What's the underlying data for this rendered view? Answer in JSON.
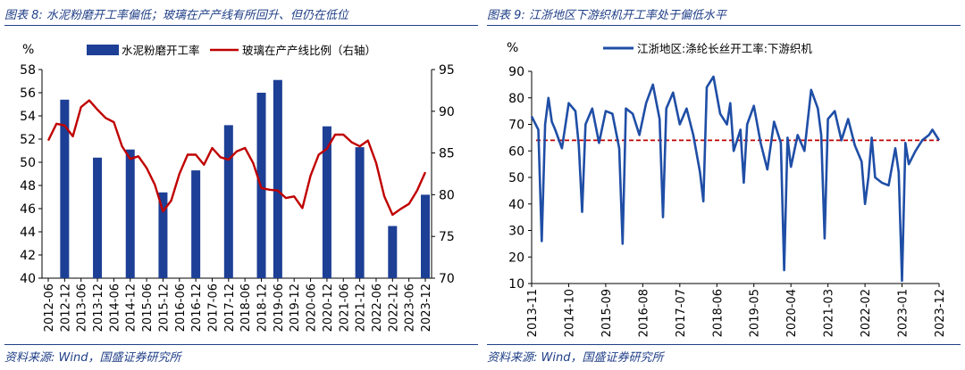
{
  "left": {
    "title": "图表 8:  水泥粉磨开工率偏低；玻璃在产产线有所回升、但仍在低位",
    "source": "资料来源:  Wind，国盛证券研究所"
  },
  "right": {
    "title": "图表 9:  江浙地区下游织机开工率处于偏低水平",
    "source": "资料来源:  Wind，国盛证券研究所"
  },
  "colors": {
    "navy": "#1f3e86",
    "bar": "#1d3f95",
    "red_line": "#c00000",
    "blue_line": "#1f4ea6",
    "dashed": "#c00000"
  },
  "chart_data": [
    {
      "type": "bar",
      "unit_left": "%",
      "ylim_left": [
        40,
        58
      ],
      "yticks_left": [
        40,
        42,
        44,
        46,
        48,
        50,
        52,
        54,
        56,
        58
      ],
      "ylim_right": [
        70,
        95
      ],
      "yticks_right": [
        70,
        75,
        80,
        85,
        90,
        95
      ],
      "categories": [
        "2012-06",
        "2012-12",
        "2013-06",
        "2013-12",
        "2014-06",
        "2014-12",
        "2015-06",
        "2015-12",
        "2016-06",
        "2016-12",
        "2017-06",
        "2017-12",
        "2018-06",
        "2018-12",
        "2019-06",
        "2019-12",
        "2020-06",
        "2020-12",
        "2021-06",
        "2021-12",
        "2022-06",
        "2022-12",
        "2023-06",
        "2023-12"
      ],
      "x_start": "2012-06",
      "x_end": "2023-12",
      "series": [
        {
          "name": "水泥粉磨开工率",
          "axis": "left",
          "type": "bar",
          "color": "#1d3f95",
          "points": [
            {
              "x": "2012-12",
              "y": 55.4
            },
            {
              "x": "2013-12",
              "y": 50.4
            },
            {
              "x": "2014-12",
              "y": 51.1
            },
            {
              "x": "2015-12",
              "y": 47.4
            },
            {
              "x": "2016-12",
              "y": 49.3
            },
            {
              "x": "2017-12",
              "y": 53.2
            },
            {
              "x": "2018-12",
              "y": 56.0
            },
            {
              "x": "2019-06",
              "y": 57.1
            },
            {
              "x": "2020-12",
              "y": 53.1
            },
            {
              "x": "2021-12",
              "y": 51.3
            },
            {
              "x": "2022-12",
              "y": 44.5
            },
            {
              "x": "2023-12",
              "y": 47.2
            }
          ]
        },
        {
          "name": "玻璃在产产线比例（右轴）",
          "axis": "right",
          "type": "line",
          "color": "#c00000",
          "points": [
            {
              "x": "2012-06",
              "y": 86.5
            },
            {
              "x": "2012-09",
              "y": 88.5
            },
            {
              "x": "2012-12",
              "y": 88.3
            },
            {
              "x": "2013-03",
              "y": 87.0
            },
            {
              "x": "2013-06",
              "y": 90.5
            },
            {
              "x": "2013-09",
              "y": 91.3
            },
            {
              "x": "2013-12",
              "y": 90.2
            },
            {
              "x": "2014-03",
              "y": 89.2
            },
            {
              "x": "2014-06",
              "y": 88.7
            },
            {
              "x": "2014-09",
              "y": 85.8
            },
            {
              "x": "2014-12",
              "y": 84.3
            },
            {
              "x": "2015-03",
              "y": 84.6
            },
            {
              "x": "2015-06",
              "y": 83.2
            },
            {
              "x": "2015-09",
              "y": 81.2
            },
            {
              "x": "2015-12",
              "y": 78.0
            },
            {
              "x": "2016-03",
              "y": 79.3
            },
            {
              "x": "2016-06",
              "y": 82.5
            },
            {
              "x": "2016-09",
              "y": 84.8
            },
            {
              "x": "2016-12",
              "y": 84.8
            },
            {
              "x": "2017-03",
              "y": 83.6
            },
            {
              "x": "2017-06",
              "y": 85.6
            },
            {
              "x": "2017-09",
              "y": 84.5
            },
            {
              "x": "2017-12",
              "y": 84.2
            },
            {
              "x": "2018-03",
              "y": 85.2
            },
            {
              "x": "2018-06",
              "y": 85.6
            },
            {
              "x": "2018-09",
              "y": 83.8
            },
            {
              "x": "2018-12",
              "y": 80.8
            },
            {
              "x": "2019-03",
              "y": 80.6
            },
            {
              "x": "2019-06",
              "y": 80.5
            },
            {
              "x": "2019-09",
              "y": 79.6
            },
            {
              "x": "2019-12",
              "y": 79.8
            },
            {
              "x": "2020-03",
              "y": 78.4
            },
            {
              "x": "2020-06",
              "y": 82.3
            },
            {
              "x": "2020-09",
              "y": 84.8
            },
            {
              "x": "2020-12",
              "y": 85.5
            },
            {
              "x": "2021-03",
              "y": 87.2
            },
            {
              "x": "2021-06",
              "y": 87.2
            },
            {
              "x": "2021-09",
              "y": 86.3
            },
            {
              "x": "2021-12",
              "y": 85.8
            },
            {
              "x": "2022-03",
              "y": 86.5
            },
            {
              "x": "2022-06",
              "y": 83.8
            },
            {
              "x": "2022-09",
              "y": 79.8
            },
            {
              "x": "2022-12",
              "y": 77.6
            },
            {
              "x": "2023-03",
              "y": 78.3
            },
            {
              "x": "2023-06",
              "y": 78.9
            },
            {
              "x": "2023-09",
              "y": 80.5
            },
            {
              "x": "2023-12",
              "y": 82.7
            }
          ]
        }
      ]
    },
    {
      "type": "line",
      "unit": "%",
      "ylim": [
        10,
        90
      ],
      "yticks": [
        10,
        20,
        30,
        40,
        50,
        60,
        70,
        80,
        90
      ],
      "categories": [
        "2013-11",
        "2014-10",
        "2015-09",
        "2016-08",
        "2017-07",
        "2018-06",
        "2019-05",
        "2020-04",
        "2021-03",
        "2022-02",
        "2023-01",
        "2023-12"
      ],
      "x_start": "2013-11",
      "x_end": "2023-12",
      "reference_line": 64,
      "series": [
        {
          "name": "江浙地区:涤纶长丝开工率:下游织机",
          "color": "#1f4ea6",
          "points": [
            {
              "x": "2013-11",
              "y": 73
            },
            {
              "x": "2014-01",
              "y": 68
            },
            {
              "x": "2014-02",
              "y": 26
            },
            {
              "x": "2014-03",
              "y": 70
            },
            {
              "x": "2014-04",
              "y": 80
            },
            {
              "x": "2014-05",
              "y": 71
            },
            {
              "x": "2014-06",
              "y": 68
            },
            {
              "x": "2014-08",
              "y": 61
            },
            {
              "x": "2014-10",
              "y": 78
            },
            {
              "x": "2014-12",
              "y": 75
            },
            {
              "x": "2015-01",
              "y": 62
            },
            {
              "x": "2015-02",
              "y": 37
            },
            {
              "x": "2015-03",
              "y": 70
            },
            {
              "x": "2015-05",
              "y": 76
            },
            {
              "x": "2015-07",
              "y": 63
            },
            {
              "x": "2015-09",
              "y": 75
            },
            {
              "x": "2015-11",
              "y": 74
            },
            {
              "x": "2016-01",
              "y": 61
            },
            {
              "x": "2016-02",
              "y": 25
            },
            {
              "x": "2016-03",
              "y": 76
            },
            {
              "x": "2016-05",
              "y": 74
            },
            {
              "x": "2016-07",
              "y": 66
            },
            {
              "x": "2016-09",
              "y": 78
            },
            {
              "x": "2016-11",
              "y": 85
            },
            {
              "x": "2017-01",
              "y": 72
            },
            {
              "x": "2017-02",
              "y": 35
            },
            {
              "x": "2017-03",
              "y": 76
            },
            {
              "x": "2017-05",
              "y": 82
            },
            {
              "x": "2017-07",
              "y": 70
            },
            {
              "x": "2017-09",
              "y": 76
            },
            {
              "x": "2017-11",
              "y": 66
            },
            {
              "x": "2018-01",
              "y": 52
            },
            {
              "x": "2018-02",
              "y": 41
            },
            {
              "x": "2018-03",
              "y": 84
            },
            {
              "x": "2018-05",
              "y": 88
            },
            {
              "x": "2018-07",
              "y": 74
            },
            {
              "x": "2018-09",
              "y": 70
            },
            {
              "x": "2018-10",
              "y": 78
            },
            {
              "x": "2018-11",
              "y": 60
            },
            {
              "x": "2019-01",
              "y": 68
            },
            {
              "x": "2019-02",
              "y": 48
            },
            {
              "x": "2019-03",
              "y": 70
            },
            {
              "x": "2019-05",
              "y": 77
            },
            {
              "x": "2019-07",
              "y": 63
            },
            {
              "x": "2019-09",
              "y": 53
            },
            {
              "x": "2019-11",
              "y": 71
            },
            {
              "x": "2020-01",
              "y": 63
            },
            {
              "x": "2020-02",
              "y": 15
            },
            {
              "x": "2020-03",
              "y": 65
            },
            {
              "x": "2020-04",
              "y": 54
            },
            {
              "x": "2020-06",
              "y": 66
            },
            {
              "x": "2020-08",
              "y": 60
            },
            {
              "x": "2020-10",
              "y": 83
            },
            {
              "x": "2020-12",
              "y": 76
            },
            {
              "x": "2021-01",
              "y": 66
            },
            {
              "x": "2021-02",
              "y": 27
            },
            {
              "x": "2021-03",
              "y": 72
            },
            {
              "x": "2021-05",
              "y": 75
            },
            {
              "x": "2021-07",
              "y": 64
            },
            {
              "x": "2021-09",
              "y": 72
            },
            {
              "x": "2021-11",
              "y": 62
            },
            {
              "x": "2022-01",
              "y": 56
            },
            {
              "x": "2022-02",
              "y": 40
            },
            {
              "x": "2022-03",
              "y": 50
            },
            {
              "x": "2022-04",
              "y": 65
            },
            {
              "x": "2022-05",
              "y": 50
            },
            {
              "x": "2022-07",
              "y": 48
            },
            {
              "x": "2022-09",
              "y": 47
            },
            {
              "x": "2022-11",
              "y": 61
            },
            {
              "x": "2022-12",
              "y": 52
            },
            {
              "x": "2023-01",
              "y": 11
            },
            {
              "x": "2023-02",
              "y": 63
            },
            {
              "x": "2023-03",
              "y": 55
            },
            {
              "x": "2023-05",
              "y": 60
            },
            {
              "x": "2023-07",
              "y": 64
            },
            {
              "x": "2023-09",
              "y": 66
            },
            {
              "x": "2023-10",
              "y": 68
            },
            {
              "x": "2023-12",
              "y": 64
            }
          ]
        }
      ]
    }
  ]
}
